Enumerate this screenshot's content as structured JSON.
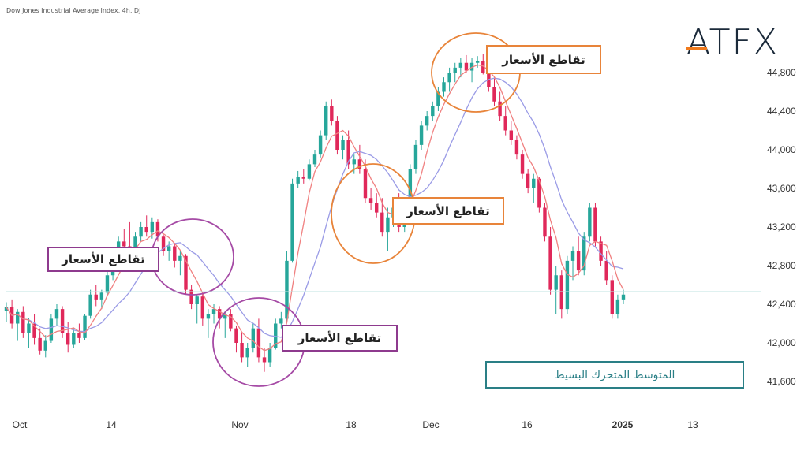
{
  "title": "Dow Jones Industrial Average Index, 4h, DJ",
  "logo": "ATFX",
  "annotations": {
    "cross_1": "تقاطع الأسعار",
    "cross_2": "تقاطع الأسعار",
    "cross_3": "تقاطع الأسعار",
    "cross_4": "تقاطع الأسعار",
    "legend": "المتوسط المتحرك البسيط"
  },
  "colors": {
    "up": "#26a69a",
    "down": "#e0285a",
    "sma_fast": "#f08080",
    "sma_slow": "#9a9be6",
    "circle_purple": "#a54aa5",
    "circle_orange": "#e8843a"
  },
  "chart_data": {
    "type": "candlestick",
    "title": "Dow Jones Industrial Average Index, 4h, DJ",
    "y_ticks": [
      "41,600",
      "42,000",
      "42,400",
      "42,800",
      "43,200",
      "43,600",
      "44,000",
      "44,400",
      "44,800"
    ],
    "x_ticks": [
      "Oct",
      "14",
      "Nov",
      "18",
      "Dec",
      "16",
      "2025",
      "13"
    ],
    "ylim": [
      41450,
      45100
    ],
    "candles": [
      [
        42330,
        42420,
        42220,
        42370
      ],
      [
        42370,
        42450,
        42150,
        42200
      ],
      [
        42200,
        42350,
        42020,
        42320
      ],
      [
        42320,
        42380,
        42050,
        42100
      ],
      [
        42100,
        42260,
        41950,
        42200
      ],
      [
        42200,
        42300,
        41980,
        42050
      ],
      [
        42050,
        42150,
        41880,
        41920
      ],
      [
        41920,
        42080,
        41850,
        42020
      ],
      [
        42020,
        42300,
        42000,
        42250
      ],
      [
        42250,
        42400,
        42180,
        42350
      ],
      [
        42350,
        42380,
        42050,
        42100
      ],
      [
        42100,
        42220,
        41900,
        41980
      ],
      [
        41980,
        42150,
        41950,
        42100
      ],
      [
        42100,
        42200,
        42000,
        42050
      ],
      [
        42050,
        42300,
        42030,
        42280
      ],
      [
        42280,
        42550,
        42250,
        42500
      ],
      [
        42500,
        42600,
        42380,
        42450
      ],
      [
        42450,
        42550,
        42350,
        42520
      ],
      [
        42520,
        42750,
        42480,
        42700
      ],
      [
        42700,
        42850,
        42650,
        42800
      ],
      [
        42800,
        43100,
        42780,
        43050
      ],
      [
        43050,
        43180,
        42950,
        43000
      ],
      [
        43000,
        43250,
        42850,
        42900
      ],
      [
        42900,
        43150,
        42880,
        43100
      ],
      [
        43100,
        43250,
        43050,
        43200
      ],
      [
        43200,
        43320,
        43100,
        43150
      ],
      [
        43150,
        43300,
        43080,
        43250
      ],
      [
        43250,
        43280,
        43050,
        43100
      ],
      [
        43100,
        43120,
        42900,
        42950
      ],
      [
        42950,
        43050,
        42850,
        43000
      ],
      [
        43000,
        43020,
        42780,
        42850
      ],
      [
        42850,
        42950,
        42700,
        42900
      ],
      [
        42900,
        42920,
        42500,
        42550
      ],
      [
        42550,
        42600,
        42350,
        42400
      ],
      [
        42400,
        42500,
        42200,
        42480
      ],
      [
        42480,
        42520,
        42180,
        42250
      ],
      [
        42250,
        42350,
        42050,
        42300
      ],
      [
        42300,
        42400,
        42200,
        42350
      ],
      [
        42350,
        42380,
        42150,
        42250
      ],
      [
        42250,
        42330,
        42050,
        42300
      ],
      [
        42300,
        42350,
        42120,
        42150
      ],
      [
        42150,
        42180,
        41900,
        42000
      ],
      [
        42000,
        42100,
        41800,
        41850
      ],
      [
        41850,
        42000,
        41750,
        41950
      ],
      [
        41950,
        42200,
        41900,
        42150
      ],
      [
        42150,
        42250,
        41800,
        41850
      ],
      [
        41850,
        41950,
        41700,
        41800
      ],
      [
        41800,
        42000,
        41750,
        41950
      ],
      [
        41950,
        42250,
        41930,
        42200
      ],
      [
        42200,
        42320,
        42150,
        42250
      ],
      [
        42250,
        42950,
        42220,
        42850
      ],
      [
        42850,
        43700,
        42830,
        43650
      ],
      [
        43650,
        43780,
        43600,
        43720
      ],
      [
        43720,
        43800,
        43650,
        43700
      ],
      [
        43700,
        43900,
        43680,
        43850
      ],
      [
        43850,
        44000,
        43820,
        43950
      ],
      [
        43950,
        44200,
        43920,
        44150
      ],
      [
        44150,
        44500,
        44100,
        44450
      ],
      [
        44450,
        44520,
        44250,
        44300
      ],
      [
        44300,
        44350,
        43950,
        44000
      ],
      [
        44000,
        44150,
        43900,
        44100
      ],
      [
        44100,
        44200,
        43800,
        43850
      ],
      [
        43850,
        43950,
        43750,
        43900
      ],
      [
        43900,
        44050,
        43750,
        43800
      ],
      [
        43800,
        43900,
        43450,
        43500
      ],
      [
        43500,
        43600,
        43380,
        43450
      ],
      [
        43450,
        43550,
        43300,
        43350
      ],
      [
        43350,
        43500,
        43100,
        43150
      ],
      [
        43150,
        43400,
        42950,
        43300
      ],
      [
        43300,
        43450,
        43200,
        43400
      ],
      [
        43400,
        43550,
        43150,
        43200
      ],
      [
        43200,
        43500,
        43150,
        43450
      ],
      [
        43450,
        43850,
        43400,
        43800
      ],
      [
        43800,
        44100,
        43750,
        44050
      ],
      [
        44050,
        44300,
        44000,
        44250
      ],
      [
        44250,
        44400,
        44200,
        44350
      ],
      [
        44350,
        44500,
        44300,
        44450
      ],
      [
        44450,
        44650,
        44400,
        44600
      ],
      [
        44600,
        44750,
        44550,
        44700
      ],
      [
        44700,
        44850,
        44600,
        44800
      ],
      [
        44800,
        44900,
        44700,
        44850
      ],
      [
        44850,
        44950,
        44750,
        44900
      ],
      [
        44900,
        44980,
        44800,
        44820
      ],
      [
        44820,
        44950,
        44700,
        44900
      ],
      [
        44900,
        44970,
        44850,
        44920
      ],
      [
        44920,
        44990,
        44780,
        44800
      ],
      [
        44800,
        44850,
        44600,
        44650
      ],
      [
        44650,
        44750,
        44450,
        44500
      ],
      [
        44500,
        44600,
        44300,
        44350
      ],
      [
        44350,
        44450,
        44150,
        44200
      ],
      [
        44200,
        44300,
        44050,
        44100
      ],
      [
        44100,
        44150,
        43900,
        43950
      ],
      [
        43950,
        44000,
        43700,
        43750
      ],
      [
        43750,
        43800,
        43550,
        43600
      ],
      [
        43600,
        43750,
        43450,
        43700
      ],
      [
        43700,
        43720,
        43350,
        43400
      ],
      [
        43400,
        43450,
        43050,
        43100
      ],
      [
        43100,
        43200,
        42500,
        42550
      ],
      [
        42550,
        42800,
        42300,
        42700
      ],
      [
        42700,
        42750,
        42250,
        42350
      ],
      [
        42350,
        42900,
        42300,
        42850
      ],
      [
        42850,
        43000,
        42650,
        42950
      ],
      [
        42950,
        43100,
        42700,
        42750
      ],
      [
        42750,
        43150,
        42700,
        43100
      ],
      [
        43100,
        43450,
        43050,
        43400
      ],
      [
        43400,
        43450,
        43000,
        43050
      ],
      [
        43050,
        43100,
        42800,
        42850
      ],
      [
        42850,
        42950,
        42600,
        42650
      ],
      [
        42650,
        42700,
        42250,
        42300
      ],
      [
        42300,
        42500,
        42250,
        42450
      ],
      [
        42450,
        42550,
        42400,
        42500
      ]
    ],
    "sma_fast": "moving average (short)",
    "sma_slow": "moving average (long)"
  }
}
